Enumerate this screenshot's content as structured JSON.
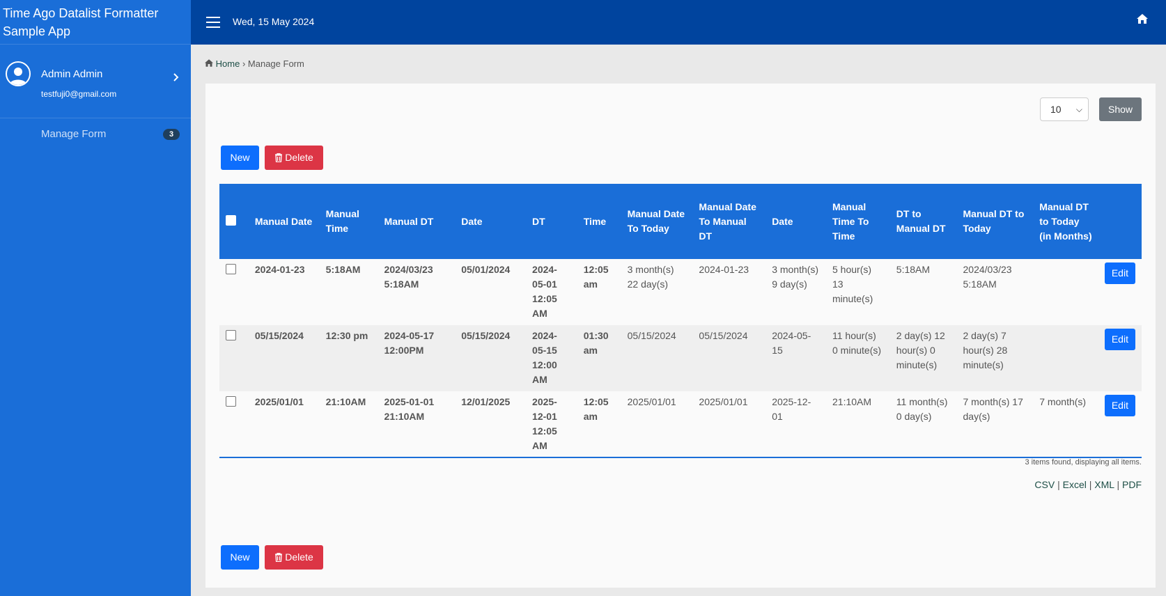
{
  "sidebar": {
    "app_title": "Time Ago Datalist Formatter Sample App",
    "user_name": "Admin Admin",
    "user_email": "testfuji0@gmail.com",
    "nav": [
      {
        "label": "Manage Form",
        "badge": "3"
      }
    ]
  },
  "topbar": {
    "date": "Wed, 15 May 2024"
  },
  "breadcrumb": {
    "home": "Home",
    "separator": "›",
    "current": "Manage Form"
  },
  "pagination": {
    "page_size": "10",
    "show_label": "Show"
  },
  "toolbar": {
    "new_label": "New",
    "delete_label": "Delete"
  },
  "table": {
    "headers": [
      "Manual Date",
      "Manual Time",
      "Manual DT",
      "Date",
      "DT",
      "Time",
      "Manual Date To Today",
      "Manual Date To Manual DT",
      "Date",
      "Manual Time To Time",
      "DT to Manual DT",
      "Manual DT to Today",
      "Manual DT to Today (in Months)"
    ],
    "rows": [
      [
        "2024-01-23",
        "5:18AM",
        "2024/03/23 5:18AM",
        "05/01/2024",
        "2024-05-01 12:05 AM",
        "12:05 am",
        "3 month(s) 22 day(s)",
        "2024-01-23",
        "3 month(s) 9 day(s)",
        "5 hour(s) 13 minute(s)",
        "5:18AM",
        "2024/03/23 5:18AM",
        ""
      ],
      [
        "05/15/2024",
        "12:30 pm",
        "2024-05-17 12:00PM",
        "05/15/2024",
        "2024-05-15 12:00 AM",
        "01:30 am",
        "05/15/2024",
        "05/15/2024",
        "2024-05-15",
        "11 hour(s) 0 minute(s)",
        "2 day(s) 12 hour(s) 0 minute(s)",
        "2 day(s) 7 hour(s) 28 minute(s)",
        ""
      ],
      [
        "2025/01/01",
        "21:10AM",
        "2025-01-01 21:10AM",
        "12/01/2025",
        "2025-12-01 12:05 AM",
        "12:05 am",
        "2025/01/01",
        "2025/01/01",
        "2025-12-01",
        "21:10AM",
        "11 month(s) 0 day(s)",
        "7 month(s) 17 day(s)",
        "7 month(s)"
      ]
    ],
    "edit_label": "Edit"
  },
  "footer": {
    "found_text": "3 items found, displaying all items.",
    "exports": [
      "CSV",
      "Excel",
      "XML",
      "PDF"
    ]
  }
}
